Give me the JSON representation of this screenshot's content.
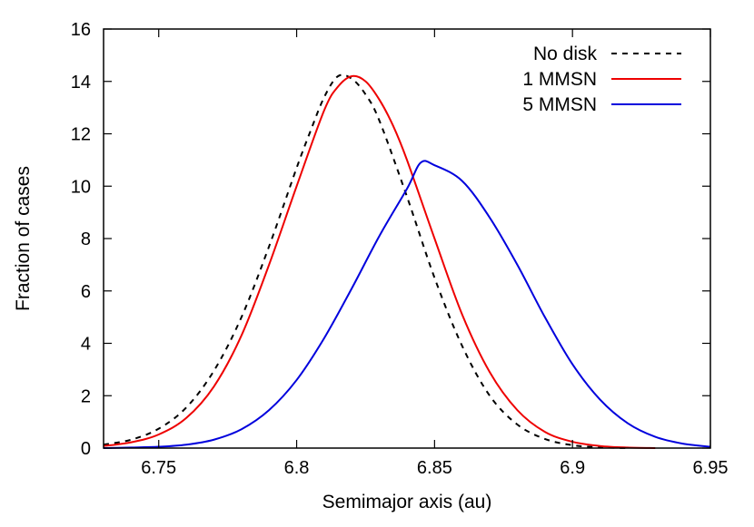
{
  "chart_data": {
    "type": "line",
    "xlabel": "Semimajor axis (au)",
    "ylabel": "Fraction of cases",
    "xlim": [
      6.73,
      6.95
    ],
    "ylim": [
      0,
      16
    ],
    "xticks": [
      6.75,
      6.8,
      6.85,
      6.9,
      6.95
    ],
    "xtick_labels": [
      "6.75",
      "6.8",
      "6.85",
      "6.9",
      "6.95"
    ],
    "yticks": [
      0,
      2,
      4,
      6,
      8,
      10,
      12,
      14,
      16
    ],
    "ytick_labels": [
      "0",
      "2",
      "4",
      "6",
      "8",
      "10",
      "12",
      "14",
      "16"
    ],
    "grid": false,
    "legend_position": "top-right",
    "series": [
      {
        "name": "No disk",
        "color": "#000000",
        "dash": "dashed",
        "x": [
          6.73,
          6.74,
          6.75,
          6.76,
          6.77,
          6.78,
          6.79,
          6.8,
          6.805,
          6.81,
          6.815,
          6.82,
          6.825,
          6.83,
          6.84,
          6.85,
          6.86,
          6.87,
          6.88,
          6.89,
          6.9,
          6.91,
          6.92
        ],
        "y": [
          0.13,
          0.32,
          0.74,
          1.55,
          2.95,
          5.0,
          7.7,
          10.7,
          12.1,
          13.4,
          14.2,
          14.1,
          13.5,
          12.5,
          9.6,
          6.5,
          3.9,
          2.0,
          0.9,
          0.35,
          0.11,
          0.03,
          0.0
        ]
      },
      {
        "name": "1 MMSN",
        "color": "#ee0000",
        "dash": "solid",
        "x": [
          6.73,
          6.74,
          6.75,
          6.76,
          6.77,
          6.78,
          6.79,
          6.8,
          6.81,
          6.815,
          6.82,
          6.825,
          6.83,
          6.835,
          6.84,
          6.85,
          6.86,
          6.87,
          6.88,
          6.89,
          6.9,
          6.91,
          6.92,
          6.93
        ],
        "y": [
          0.08,
          0.22,
          0.52,
          1.15,
          2.35,
          4.3,
          7.0,
          10.0,
          12.9,
          13.8,
          14.2,
          14.0,
          13.3,
          12.3,
          11.0,
          8.0,
          5.1,
          2.9,
          1.45,
          0.62,
          0.24,
          0.08,
          0.02,
          0.0
        ]
      },
      {
        "name": "5 MMSN",
        "color": "#0000dd",
        "dash": "solid",
        "x": [
          6.73,
          6.74,
          6.75,
          6.76,
          6.77,
          6.78,
          6.79,
          6.8,
          6.81,
          6.82,
          6.83,
          6.84,
          6.845,
          6.85,
          6.86,
          6.87,
          6.88,
          6.89,
          6.9,
          6.91,
          6.92,
          6.93,
          6.94,
          6.95
        ],
        "y": [
          0.0,
          0.02,
          0.05,
          0.13,
          0.32,
          0.72,
          1.45,
          2.6,
          4.2,
          6.1,
          8.1,
          9.9,
          10.9,
          10.8,
          10.2,
          8.8,
          7.0,
          5.0,
          3.2,
          1.85,
          0.95,
          0.43,
          0.17,
          0.05
        ]
      }
    ]
  }
}
